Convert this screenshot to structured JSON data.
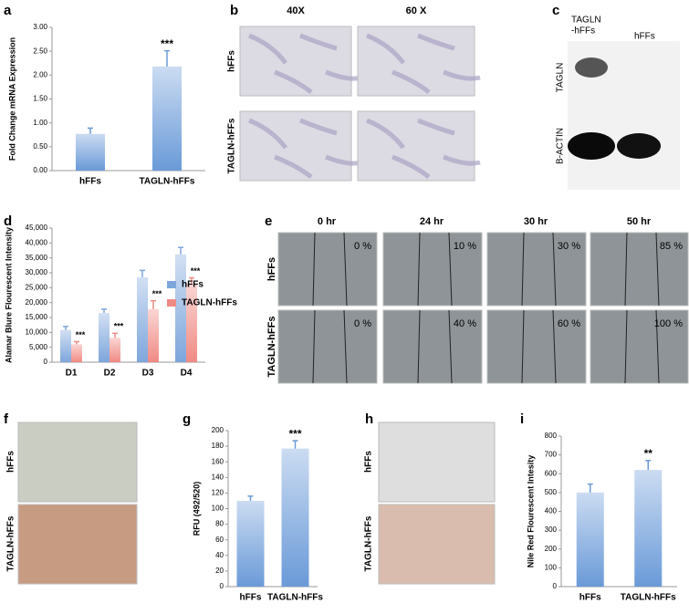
{
  "chart_data": [
    {
      "type": "bar",
      "label": "a",
      "ylabel": "Fold Change mRNA Expression",
      "categories": [
        "hFFs",
        "TAGLN-hFFs"
      ],
      "values": [
        0.77,
        2.18
      ],
      "errors": [
        0.12,
        0.33
      ],
      "annotations": [
        null,
        "***"
      ],
      "color": "#6a9ad8",
      "ylim": [
        0,
        3
      ],
      "yticks": [
        {
          "value": 0,
          "label": "0.00"
        },
        {
          "value": 0.5,
          "label": "0.50"
        },
        {
          "value": 1,
          "label": "1.00"
        },
        {
          "value": 1.5,
          "label": "1.50"
        },
        {
          "value": 2,
          "label": "2.00"
        },
        {
          "value": 2.5,
          "label": "2.50"
        },
        {
          "value": 3,
          "label": "3.00"
        }
      ]
    },
    {
      "type": "bar",
      "label": "d",
      "ylabel": "Alamar Blure Flourescent Intensity",
      "categories": [
        "D1",
        "D2",
        "D3",
        "D4"
      ],
      "series": [
        {
          "name": "hFFs",
          "color": "#7ea6dc",
          "values": [
            10800,
            16500,
            28500,
            36200
          ],
          "errors": [
            1200,
            1300,
            2300,
            2300
          ],
          "annotations": [
            null,
            null,
            null,
            null
          ]
        },
        {
          "name": "TAGLN-hFFs",
          "color": "#f08a84",
          "values": [
            6000,
            8200,
            17800,
            26300
          ],
          "errors": [
            900,
            1500,
            2800,
            2000
          ],
          "annotations": [
            "***",
            "***",
            "***",
            "***"
          ]
        }
      ],
      "ylim": [
        0,
        45000
      ],
      "legend": "right",
      "yticks": [
        0,
        {
          "value": 5000,
          "label": "5,000"
        },
        {
          "value": 10000,
          "label": "10,000"
        },
        {
          "value": 15000,
          "label": "15,000"
        },
        {
          "value": 20000,
          "label": "20,000"
        },
        {
          "value": 25000,
          "label": "25,000"
        },
        {
          "value": 30000,
          "label": "30,000"
        },
        {
          "value": 35000,
          "label": "35,000"
        },
        {
          "value": 40000,
          "label": "40,000"
        },
        {
          "value": 45000,
          "label": "45,000"
        }
      ]
    },
    {
      "type": "bar",
      "label": "g",
      "ylabel": "RFU (492/520)",
      "categories": [
        "hFFs",
        "TAGLN-hFFs"
      ],
      "values": [
        110,
        177
      ],
      "errors": [
        6,
        10
      ],
      "annotations": [
        null,
        "***"
      ],
      "color": "#6a9ad8",
      "ylim": [
        0,
        200
      ],
      "yticks": [
        0,
        20,
        40,
        60,
        80,
        100,
        120,
        140,
        160,
        180,
        200
      ]
    },
    {
      "type": "bar",
      "label": "i",
      "ylabel": "Nile Red Flourescent Intesity",
      "categories": [
        "hFFs",
        "TAGLN-hFFs"
      ],
      "values": [
        500,
        620
      ],
      "errors": [
        45,
        50
      ],
      "annotations": [
        null,
        "**"
      ],
      "color": "#6a9ad8",
      "ylim": [
        0,
        800
      ],
      "yticks": [
        0,
        100,
        200,
        300,
        400,
        500,
        600,
        700,
        800
      ]
    }
  ],
  "panels": {
    "b": {
      "label": "b",
      "columns": [
        "40X",
        "60 X"
      ],
      "rows": [
        "hFFs",
        "TAGLN-hFFs"
      ]
    },
    "c": {
      "label": "c",
      "lanes": [
        {
          "lines": [
            "TAGLN",
            "-hFFs"
          ]
        },
        {
          "lines": [
            "hFFs"
          ]
        }
      ],
      "bands": [
        "TAGLN",
        "B-ACTIN"
      ]
    },
    "e": {
      "label": "e",
      "columns": [
        "0 hr",
        "24 hr",
        "30 hr",
        "50 hr"
      ],
      "rows": [
        {
          "name": "hFFs",
          "closure": [
            "0 %",
            "10 %",
            "30 %",
            "85 %"
          ]
        },
        {
          "name": "TAGLN-hFFs",
          "closure": [
            "0 %",
            "40 %",
            "60 %",
            "100 %"
          ]
        }
      ]
    },
    "f": {
      "label": "f",
      "rows": [
        "hFFs",
        "TAGLN-hFFs"
      ]
    },
    "h": {
      "label": "h",
      "rows": [
        "hFFs",
        "TAGLN-hFFs"
      ]
    }
  }
}
